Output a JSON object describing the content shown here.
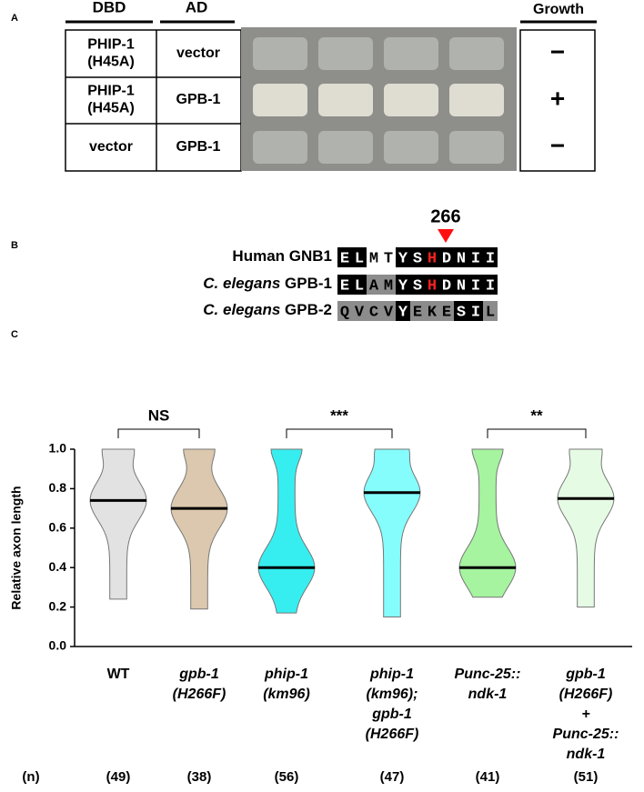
{
  "panel_a": {
    "label": "A",
    "headers": [
      "DBD",
      "AD"
    ],
    "growth_header": "Growth",
    "rows": [
      {
        "dbd": [
          "PHIP-1",
          "(H45A)"
        ],
        "ad": "vector",
        "growth": "−"
      },
      {
        "dbd": [
          "PHIP-1",
          "(H45A)"
        ],
        "ad": "GPB-1",
        "growth": "+"
      },
      {
        "dbd": [
          "vector"
        ],
        "ad": "GPB-1",
        "growth": "−"
      }
    ]
  },
  "panel_b": {
    "label": "B",
    "position": "266",
    "rows": [
      {
        "name": "Human GNB1",
        "residues": [
          "E",
          "L",
          "M",
          "T",
          "Y",
          "S",
          "H",
          "D",
          "N",
          "I",
          "I"
        ]
      },
      {
        "species": "C. elegans",
        "name": "GPB-1",
        "residues": [
          "E",
          "L",
          "A",
          "M",
          "Y",
          "S",
          "H",
          "D",
          "N",
          "I",
          "I"
        ]
      },
      {
        "species": "C. elegans",
        "name": "GPB-2",
        "residues": [
          "Q",
          "V",
          "C",
          "V",
          "Y",
          "E",
          "K",
          "E",
          "S",
          "I",
          "L"
        ]
      }
    ]
  },
  "chart_data": {
    "type": "violin",
    "panel_label": "C",
    "ylabel": "Relative axon length",
    "ylim": [
      0,
      1
    ],
    "yticks": [
      {
        "value": 0,
        "label": "0.0"
      },
      0.2,
      0.4,
      0.6,
      0.8,
      {
        "value": 1,
        "label": "1.0"
      }
    ],
    "categories": [
      [
        "WT"
      ],
      [
        "gpb-1",
        "(H266F)"
      ],
      [
        "phip-1",
        "(km96)"
      ],
      [
        "phip-1",
        "(km96);",
        "gpb-1",
        "(H266F)"
      ],
      [
        "Punc-25::",
        "ndk-1"
      ],
      [
        "gpb-1",
        "(H266F)",
        "+",
        "Punc-25::",
        "ndk-1"
      ]
    ],
    "medians": [
      0.74,
      0.7,
      0.4,
      0.78,
      0.4,
      0.75
    ],
    "ranges": [
      [
        0.24,
        1.0
      ],
      [
        0.19,
        1.0
      ],
      [
        0.17,
        1.0
      ],
      [
        0.15,
        1.0
      ],
      [
        0.25,
        1.0
      ],
      [
        0.2,
        1.0
      ]
    ],
    "colors": [
      "#e2e2e2",
      "#dcc8ae",
      "#36eef0",
      "#85fdfd",
      "#a6f3a0",
      "#e6fbe4"
    ],
    "comparisons": [
      "NS",
      "***",
      "**"
    ],
    "n_label": "(n)",
    "n": [
      "(49)",
      "(38)",
      "(56)",
      "(47)",
      "(41)",
      "(51)"
    ]
  }
}
